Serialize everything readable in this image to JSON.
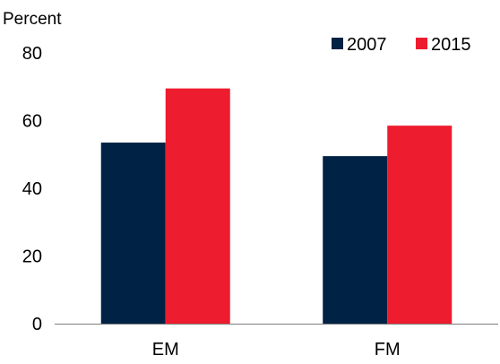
{
  "chart_data": {
    "type": "bar",
    "title": "",
    "xlabel": "",
    "ylabel": "Percent",
    "categories": [
      "EM",
      "FM"
    ],
    "series": [
      {
        "name": "2007",
        "values": [
          53.5,
          49.5
        ],
        "color": "#002244"
      },
      {
        "name": "2015",
        "values": [
          69.5,
          58.5
        ],
        "color": "#ed1c2e"
      }
    ],
    "ylim": [
      0,
      80
    ],
    "yticks": [
      0,
      20,
      40,
      60,
      80
    ],
    "grid": false,
    "legend": "top-right"
  }
}
